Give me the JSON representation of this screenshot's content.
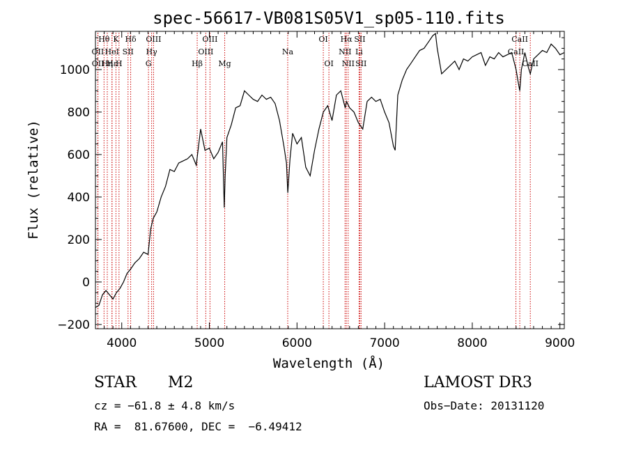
{
  "chart_data": {
    "type": "line",
    "title": "spec-56617-VB081S05V1_sp05-110.fits",
    "xlabel": "Wavelength (Å)",
    "ylabel": "Flux (relative)",
    "xlim": [
      3700,
      9050
    ],
    "ylim": [
      -220,
      1180
    ],
    "xticks": [
      4000,
      5000,
      6000,
      7000,
      8000,
      9000
    ],
    "yticks": [
      -200,
      0,
      200,
      400,
      600,
      800,
      1000
    ],
    "grid": false,
    "line_color": "#000000",
    "marker_line_color": "#cc0000",
    "series": [
      {
        "x": [
          3700,
          3740,
          3780,
          3820,
          3860,
          3900,
          3940,
          3980,
          4020,
          4060,
          4100,
          4150,
          4200,
          4250,
          4300,
          4330,
          4360,
          4400,
          4450,
          4500,
          4550,
          4600,
          4650,
          4700,
          4750,
          4800,
          4850,
          4880,
          4900,
          4950,
          5000,
          5050,
          5100,
          5150,
          5170,
          5180,
          5200,
          5250,
          5300,
          5350,
          5400,
          5450,
          5500,
          5550,
          5600,
          5650,
          5700,
          5750,
          5800,
          5850,
          5880,
          5895,
          5920,
          5950,
          6000,
          6050,
          6100,
          6150,
          6200,
          6250,
          6300,
          6350,
          6400,
          6450,
          6500,
          6550,
          6565,
          6600,
          6650,
          6700,
          6750,
          6800,
          6850,
          6900,
          6950,
          7000,
          7050,
          7100,
          7120,
          7150,
          7200,
          7250,
          7300,
          7350,
          7400,
          7450,
          7500,
          7550,
          7580,
          7600,
          7650,
          7700,
          7750,
          7800,
          7850,
          7900,
          7950,
          8000,
          8050,
          8100,
          8150,
          8200,
          8250,
          8300,
          8350,
          8400,
          8450,
          8500,
          8520,
          8542,
          8560,
          8600,
          8640,
          8662,
          8700,
          8750,
          8800,
          8850,
          8900,
          8950,
          9000,
          9050
        ],
        "y": [
          -120,
          -110,
          -60,
          -40,
          -60,
          -80,
          -50,
          -30,
          0,
          40,
          60,
          90,
          110,
          140,
          130,
          250,
          300,
          330,
          400,
          450,
          530,
          520,
          560,
          570,
          580,
          600,
          550,
          650,
          720,
          620,
          630,
          580,
          610,
          660,
          350,
          500,
          680,
          740,
          820,
          830,
          900,
          880,
          860,
          850,
          880,
          860,
          870,
          840,
          760,
          640,
          560,
          420,
          580,
          700,
          650,
          680,
          540,
          500,
          620,
          720,
          800,
          830,
          760,
          880,
          900,
          820,
          850,
          820,
          800,
          750,
          720,
          850,
          870,
          850,
          860,
          800,
          750,
          640,
          620,
          880,
          950,
          1000,
          1030,
          1060,
          1090,
          1100,
          1130,
          1160,
          1170,
          1100,
          980,
          1000,
          1020,
          1040,
          1000,
          1050,
          1040,
          1060,
          1070,
          1080,
          1020,
          1060,
          1050,
          1080,
          1060,
          1070,
          1080,
          1000,
          950,
          900,
          1000,
          1080,
          1010,
          980,
          1050,
          1070,
          1090,
          1080,
          1120,
          1100,
          1070,
          1080
        ]
      }
    ],
    "line_markers": [
      {
        "label": "Hθ",
        "x": 3798,
        "row": 0
      },
      {
        "label": "OII",
        "x": 3727,
        "row": 1
      },
      {
        "label": "OII",
        "x": 3729,
        "row": 2
      },
      {
        "label": "Hη",
        "x": 3835,
        "row": 2
      },
      {
        "label": "Hε",
        "x": 3889,
        "row": 2
      },
      {
        "label": "HeI",
        "x": 3889,
        "row": 1
      },
      {
        "label": "K",
        "x": 3934,
        "row": 0
      },
      {
        "label": "SII",
        "x": 4072,
        "row": 1
      },
      {
        "label": "H",
        "x": 3969,
        "row": 2
      },
      {
        "label": "Hδ",
        "x": 4102,
        "row": 0
      },
      {
        "label": "OIII",
        "x": 4363,
        "row": 0
      },
      {
        "label": "Hγ",
        "x": 4341,
        "row": 1
      },
      {
        "label": "G",
        "x": 4305,
        "row": 2
      },
      {
        "label": "Hβ",
        "x": 4861,
        "row": 2
      },
      {
        "label": "OIII",
        "x": 5007,
        "row": 0
      },
      {
        "label": "OIII",
        "x": 4959,
        "row": 1
      },
      {
        "label": "Mg",
        "x": 5175,
        "row": 2
      },
      {
        "label": "Na",
        "x": 5894,
        "row": 1
      },
      {
        "label": "OI",
        "x": 6300,
        "row": 0
      },
      {
        "label": "OI",
        "x": 6364,
        "row": 2
      },
      {
        "label": "Hα",
        "x": 6563,
        "row": 0
      },
      {
        "label": "NII",
        "x": 6548,
        "row": 1
      },
      {
        "label": "NII",
        "x": 6584,
        "row": 2
      },
      {
        "label": "SII",
        "x": 6717,
        "row": 0
      },
      {
        "label": "Li",
        "x": 6708,
        "row": 1
      },
      {
        "label": "SII",
        "x": 6731,
        "row": 2
      },
      {
        "label": "CaII",
        "x": 8542,
        "row": 0
      },
      {
        "label": "CaII",
        "x": 8498,
        "row": 1
      },
      {
        "label": "CaII",
        "x": 8662,
        "row": 2
      }
    ]
  },
  "footer": {
    "object_class": "STAR",
    "subclass": "M2",
    "survey": "LAMOST DR3",
    "cz": "cz = −61.8 ± 4.8 km/s",
    "obs_date": "Obs−Date: 20131120",
    "coords": "RA =  81.67600, DEC =  −6.49412"
  }
}
